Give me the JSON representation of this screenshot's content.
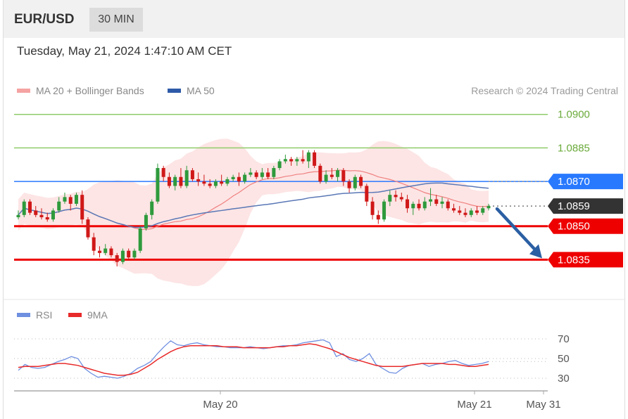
{
  "header": {
    "symbol": "EUR/USD",
    "timeframe": "30 MIN",
    "datetime": "Tuesday, May 21, 2024 1:47:10 AM CET"
  },
  "legend": {
    "ma20": "MA 20 + Bollinger Bands",
    "ma50": "MA 50",
    "credit": "Research © 2024 Trading Central"
  },
  "rsi_legend": {
    "rsi": "RSI",
    "ma9": "9MA"
  },
  "colors": {
    "up": "#2e9a3c",
    "down": "#d01818",
    "resistance": "#8fcc6a",
    "pivot": "#2979ff",
    "support": "#ee0000",
    "current": "#333333",
    "ma50": "#5a78b6",
    "ma20": "#f08080",
    "bands": "#fde0e0",
    "arrow": "#2b5fa3",
    "rsi": "#6f8fe0",
    "rsi_ma": "#e82a2a"
  },
  "chart_data": [
    {
      "type": "candlestick",
      "title": "EUR/USD 30 MIN",
      "y_range": [
        1.0826,
        1.0904
      ],
      "levels": [
        {
          "label": "1.0900",
          "value": 1.09,
          "kind": "resistance"
        },
        {
          "label": "1.0885",
          "value": 1.0885,
          "kind": "resistance"
        },
        {
          "label": "1.0870",
          "value": 1.087,
          "kind": "pivot"
        },
        {
          "label": "1.0859",
          "value": 1.0859,
          "kind": "current"
        },
        {
          "label": "1.0850",
          "value": 1.085,
          "kind": "support"
        },
        {
          "label": "1.0835",
          "value": 1.0835,
          "kind": "support"
        }
      ],
      "candles_ohlc": [
        [
          1.0854,
          1.0857,
          1.0853,
          1.0855
        ],
        [
          1.0855,
          1.0862,
          1.0854,
          1.0861
        ],
        [
          1.0861,
          1.0862,
          1.0855,
          1.0856
        ],
        [
          1.0857,
          1.0859,
          1.0854,
          1.0855
        ],
        [
          1.0855,
          1.0858,
          1.0853,
          1.0854
        ],
        [
          1.0854,
          1.0856,
          1.0852,
          1.0853
        ],
        [
          1.0853,
          1.0858,
          1.0852,
          1.0857
        ],
        [
          1.0857,
          1.0863,
          1.0856,
          1.0861
        ],
        [
          1.0861,
          1.0865,
          1.086,
          1.0863
        ],
        [
          1.0863,
          1.0864,
          1.0857,
          1.086
        ],
        [
          1.086,
          1.0865,
          1.0859,
          1.0864
        ],
        [
          1.0864,
          1.0866,
          1.0851,
          1.0853
        ],
        [
          1.0853,
          1.0854,
          1.0844,
          1.0845
        ],
        [
          1.0845,
          1.0847,
          1.0837,
          1.0839
        ],
        [
          1.0839,
          1.0841,
          1.0836,
          1.0838
        ],
        [
          1.0838,
          1.0842,
          1.0837,
          1.084
        ],
        [
          1.084,
          1.0841,
          1.0836,
          1.0837
        ],
        [
          1.0837,
          1.0838,
          1.0832,
          1.0834
        ],
        [
          1.0834,
          1.084,
          1.0833,
          1.0839
        ],
        [
          1.0839,
          1.084,
          1.0835,
          1.0836
        ],
        [
          1.0836,
          1.084,
          1.0835,
          1.0839
        ],
        [
          1.0839,
          1.085,
          1.0838,
          1.0849
        ],
        [
          1.0849,
          1.0856,
          1.0848,
          1.0855
        ],
        [
          1.0855,
          1.0862,
          1.0853,
          1.0861
        ],
        [
          1.0861,
          1.0878,
          1.086,
          1.0876
        ],
        [
          1.0876,
          1.0877,
          1.087,
          1.0872
        ],
        [
          1.0872,
          1.0874,
          1.0867,
          1.0868
        ],
        [
          1.0868,
          1.0873,
          1.0866,
          1.0872
        ],
        [
          1.0872,
          1.0876,
          1.0867,
          1.0868
        ],
        [
          1.0868,
          1.0877,
          1.0867,
          1.0875
        ],
        [
          1.0875,
          1.0876,
          1.087,
          1.0871
        ],
        [
          1.0871,
          1.0874,
          1.0868,
          1.087
        ],
        [
          1.087,
          1.0873,
          1.0868,
          1.0869
        ],
        [
          1.0869,
          1.0871,
          1.0867,
          1.0868
        ],
        [
          1.0868,
          1.0871,
          1.0867,
          1.087
        ],
        [
          1.087,
          1.0873,
          1.0868,
          1.0869
        ],
        [
          1.0869,
          1.0872,
          1.0868,
          1.0871
        ],
        [
          1.0871,
          1.0873,
          1.087,
          1.0872
        ],
        [
          1.0872,
          1.0874,
          1.0868,
          1.087
        ],
        [
          1.087,
          1.0874,
          1.0869,
          1.0873
        ],
        [
          1.0873,
          1.0876,
          1.0872,
          1.0874
        ],
        [
          1.0874,
          1.0875,
          1.0871,
          1.0872
        ],
        [
          1.0872,
          1.0876,
          1.0871,
          1.0874
        ],
        [
          1.0874,
          1.0876,
          1.0871,
          1.0872
        ],
        [
          1.0872,
          1.0877,
          1.0871,
          1.0876
        ],
        [
          1.0876,
          1.088,
          1.0875,
          1.0879
        ],
        [
          1.0879,
          1.0882,
          1.0878,
          1.088
        ],
        [
          1.088,
          1.0881,
          1.0877,
          1.0879
        ],
        [
          1.0879,
          1.0881,
          1.0877,
          1.088
        ],
        [
          1.088,
          1.0884,
          1.0878,
          1.0879
        ],
        [
          1.0879,
          1.0884,
          1.0876,
          1.0883
        ],
        [
          1.0883,
          1.0884,
          1.0876,
          1.0877
        ],
        [
          1.0877,
          1.0878,
          1.0869,
          1.087
        ],
        [
          1.087,
          1.0875,
          1.0869,
          1.0873
        ],
        [
          1.0873,
          1.0876,
          1.0871,
          1.0872
        ],
        [
          1.0872,
          1.0876,
          1.087,
          1.0875
        ],
        [
          1.0875,
          1.0876,
          1.0868,
          1.087
        ],
        [
          1.087,
          1.0871,
          1.0865,
          1.0867
        ],
        [
          1.0867,
          1.0873,
          1.0866,
          1.0872
        ],
        [
          1.0872,
          1.0873,
          1.0867,
          1.0868
        ],
        [
          1.0868,
          1.0869,
          1.0859,
          1.0861
        ],
        [
          1.0861,
          1.0863,
          1.0853,
          1.0855
        ],
        [
          1.0855,
          1.0857,
          1.0851,
          1.0853
        ],
        [
          1.0853,
          1.0862,
          1.0852,
          1.0861
        ],
        [
          1.0861,
          1.0866,
          1.0859,
          1.0864
        ],
        [
          1.0864,
          1.0866,
          1.0861,
          1.0863
        ],
        [
          1.0863,
          1.0865,
          1.0861,
          1.0862
        ],
        [
          1.0862,
          1.0864,
          1.0856,
          1.0858
        ],
        [
          1.0858,
          1.0861,
          1.0855,
          1.086
        ],
        [
          1.086,
          1.0862,
          1.0857,
          1.0858
        ],
        [
          1.0858,
          1.0863,
          1.0857,
          1.0861
        ],
        [
          1.0861,
          1.0867,
          1.0859,
          1.0862
        ],
        [
          1.0862,
          1.0864,
          1.0859,
          1.086
        ],
        [
          1.086,
          1.0863,
          1.0858,
          1.0861
        ],
        [
          1.0861,
          1.0862,
          1.0857,
          1.0858
        ],
        [
          1.0858,
          1.086,
          1.0856,
          1.0857
        ],
        [
          1.0857,
          1.0859,
          1.0855,
          1.0856
        ],
        [
          1.0856,
          1.0858,
          1.0854,
          1.0855
        ],
        [
          1.0855,
          1.0858,
          1.0854,
          1.0857
        ],
        [
          1.0857,
          1.0859,
          1.0855,
          1.0856
        ],
        [
          1.0856,
          1.0859,
          1.0855,
          1.0858
        ],
        [
          1.0858,
          1.086,
          1.0857,
          1.0859
        ]
      ]
    },
    {
      "type": "line",
      "title": "RSI",
      "y_range": [
        20,
        80
      ],
      "y_ticks": [
        "70",
        "50",
        "30"
      ],
      "x_ticks": [
        "May 20",
        "May 21",
        "May 31"
      ],
      "series": [
        {
          "name": "RSI",
          "values": [
            38,
            44,
            41,
            40,
            41,
            44,
            47,
            49,
            52,
            50,
            40,
            35,
            31,
            32,
            31,
            30,
            32,
            35,
            40,
            43,
            47,
            55,
            62,
            68,
            64,
            63,
            65,
            66,
            64,
            63,
            62,
            62,
            61,
            61,
            61,
            62,
            61,
            60,
            61,
            62,
            63,
            63,
            64,
            66,
            67,
            68,
            69,
            66,
            52,
            55,
            49,
            47,
            50,
            55,
            44,
            40,
            36,
            35,
            40,
            43,
            44,
            45,
            42,
            44,
            45,
            47,
            48,
            45,
            43,
            44,
            45,
            47
          ]
        },
        {
          "name": "9MA",
          "values": [
            41,
            42,
            42,
            42,
            43,
            44,
            45,
            45,
            44,
            43,
            41,
            39,
            37,
            35,
            34,
            33,
            33,
            34,
            36,
            40,
            44,
            49,
            53,
            57,
            60,
            62,
            63,
            63,
            63,
            63,
            63,
            62,
            62,
            62,
            61,
            61,
            61,
            61,
            61,
            62,
            62,
            63,
            63,
            64,
            65,
            64,
            62,
            60,
            57,
            54,
            51,
            49,
            47,
            45,
            43,
            42,
            42,
            42,
            42,
            43,
            44,
            45,
            45,
            45,
            45,
            44,
            44,
            43,
            42,
            42,
            43,
            44
          ]
        }
      ]
    }
  ]
}
